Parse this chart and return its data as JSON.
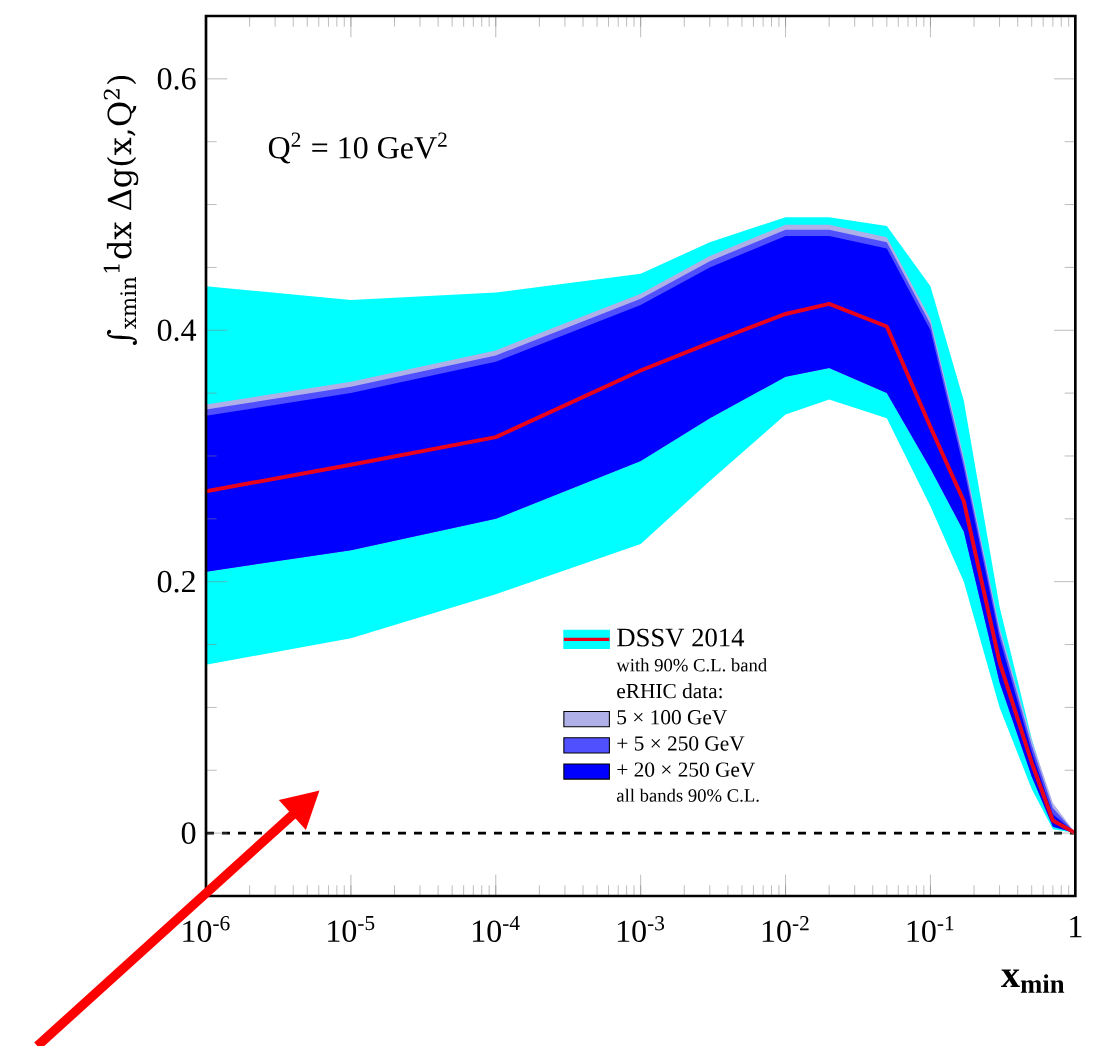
{
  "chart_data": {
    "type": "line",
    "xlabel": "**x$_{min}$**",
    "ylabel": "∫$_{xmin}$$^{1}$dx Δg(x,Q$^{2}$)",
    "legend_title": "eRHIC data:",
    "annotations": [
      "Q$^{2}$ = 10 GeV$^{2}$",
      "with 90% C.L. band",
      "all bands 90% C.L."
    ],
    "log": "x",
    "xlim": [
      1e-06,
      1
    ],
    "xticks": [
      {
        "value": 1e-06,
        "label": "10$^{-6}$"
      },
      {
        "value": 1e-05,
        "label": "10$^{-5}$"
      },
      {
        "value": 0.0001,
        "label": "10$^{-4}$"
      },
      {
        "value": 0.001,
        "label": "10$^{-3}$"
      },
      {
        "value": 0.01,
        "label": "10$^{-2}$"
      },
      {
        "value": 0.1,
        "label": "10$^{-1}$"
      },
      {
        "value": 1,
        "label": "1"
      }
    ],
    "ylim": [
      -0.05,
      0.65
    ],
    "yticks": [
      0,
      0.2,
      0.4,
      0.6
    ],
    "legend": "bottom right",
    "ref_lines": [
      {
        "axis": "y",
        "value": 0,
        "line_style": "dashed",
        "color": "#000000"
      }
    ],
    "x": [
      1e-06,
      1e-05,
      0.0001,
      0.001,
      0.003,
      0.01,
      0.02,
      0.05,
      0.1,
      0.17,
      0.3,
      0.5,
      0.7,
      1
    ],
    "series": [
      {
        "type": "area",
        "color": "#00ffff",
        "values": [
          null,
          null,
          null,
          null,
          null,
          null,
          null,
          null,
          null,
          null,
          null,
          null,
          null,
          null
        ],
        "upper": [
          0.435,
          0.424,
          0.43,
          0.445,
          0.47,
          0.49,
          0.49,
          0.483,
          0.435,
          0.344,
          0.18,
          0.075,
          0.02,
          0
        ],
        "lower": [
          0.134,
          0.155,
          0.19,
          0.23,
          0.28,
          0.333,
          0.345,
          0.33,
          0.26,
          0.2,
          0.1,
          0.035,
          0.003,
          0
        ]
      },
      {
        "name": "5 × 100 GeV",
        "type": "area",
        "color": "#b0b0e8",
        "values": [
          null,
          null,
          null,
          null,
          null,
          null,
          null,
          null,
          null,
          null,
          null,
          null,
          null,
          null
        ],
        "upper": [
          0.341,
          0.359,
          0.384,
          0.429,
          0.459,
          0.484,
          0.484,
          0.474,
          0.409,
          0.299,
          0.164,
          0.074,
          0.024,
          0
        ],
        "lower": [
          0.208,
          0.225,
          0.25,
          0.296,
          0.33,
          0.363,
          0.37,
          0.35,
          0.29,
          0.24,
          0.12,
          0.045,
          0.005,
          0
        ]
      },
      {
        "name": "+ 5 × 250 GeV",
        "type": "area",
        "color": "#5050ff",
        "values": [
          null,
          null,
          null,
          null,
          null,
          null,
          null,
          null,
          null,
          null,
          null,
          null,
          null,
          null
        ],
        "upper": [
          0.337,
          0.355,
          0.38,
          0.425,
          0.455,
          0.48,
          0.48,
          0.47,
          0.405,
          0.295,
          0.16,
          0.07,
          0.02,
          0
        ],
        "lower": [
          0.208,
          0.225,
          0.25,
          0.296,
          0.33,
          0.363,
          0.37,
          0.35,
          0.29,
          0.24,
          0.12,
          0.045,
          0.005,
          0
        ]
      },
      {
        "name": "+ 20 × 250 GeV",
        "type": "area",
        "color": "#0000ff",
        "values": [
          null,
          null,
          null,
          null,
          null,
          null,
          null,
          null,
          null,
          null,
          null,
          null,
          null,
          null
        ],
        "upper": [
          0.332,
          0.35,
          0.375,
          0.42,
          0.45,
          0.475,
          0.475,
          0.465,
          0.4,
          0.29,
          0.155,
          0.065,
          0.015,
          0
        ],
        "lower": [
          0.208,
          0.225,
          0.25,
          0.296,
          0.33,
          0.363,
          0.37,
          0.35,
          0.29,
          0.24,
          0.12,
          0.045,
          0.005,
          0
        ]
      },
      {
        "name": "DSSV 2014",
        "color": "#e8001c",
        "values": [
          0.272,
          0.293,
          0.315,
          0.368,
          0.39,
          0.413,
          0.421,
          0.403,
          0.323,
          0.264,
          0.136,
          0.056,
          0.01,
          0
        ]
      }
    ]
  }
}
